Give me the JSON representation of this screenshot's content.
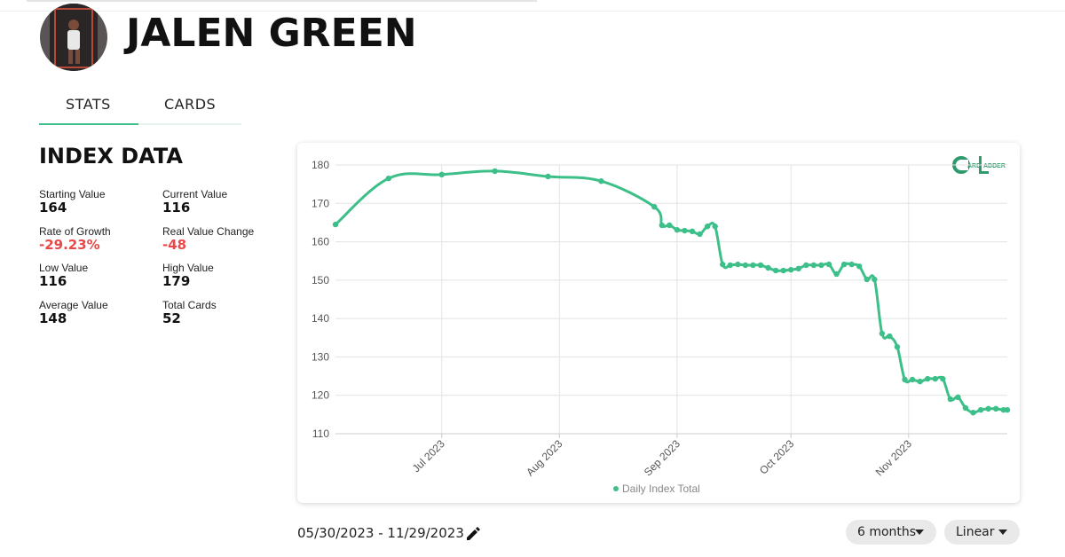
{
  "header": {
    "title": "JALEN GREEN"
  },
  "tabs": [
    "STATS",
    "CARDS"
  ],
  "index_data": {
    "title": "INDEX DATA",
    "stats": [
      {
        "label": "Starting Value",
        "value": "164"
      },
      {
        "label": "Current Value",
        "value": "116"
      },
      {
        "label": "Rate of Growth",
        "value": "-29.23%"
      },
      {
        "label": "Real Value Change",
        "value": "-48"
      },
      {
        "label": "Low Value",
        "value": "116"
      },
      {
        "label": "High Value",
        "value": "179"
      },
      {
        "label": "Average Value",
        "value": "148"
      },
      {
        "label": "Total Cards",
        "value": "52"
      }
    ]
  },
  "logo": {
    "left": "ARD",
    "right": "ADDER"
  },
  "chart_data": {
    "type": "line",
    "x": [
      "2023-06-03",
      "2023-06-17",
      "2023-07-01",
      "2023-07-15",
      "2023-07-29",
      "2023-08-12",
      "2023-08-26",
      "2023-08-28",
      "2023-08-30",
      "2023-09-01",
      "2023-09-03",
      "2023-09-05",
      "2023-09-07",
      "2023-09-09",
      "2023-09-11",
      "2023-09-13",
      "2023-09-15",
      "2023-09-17",
      "2023-09-19",
      "2023-09-21",
      "2023-09-23",
      "2023-09-25",
      "2023-09-27",
      "2023-09-29",
      "2023-10-01",
      "2023-10-03",
      "2023-10-05",
      "2023-10-07",
      "2023-10-09",
      "2023-10-11",
      "2023-10-13",
      "2023-10-15",
      "2023-10-17",
      "2023-10-19",
      "2023-10-21",
      "2023-10-23",
      "2023-10-25",
      "2023-10-27",
      "2023-10-29",
      "2023-10-31",
      "2023-11-02",
      "2023-11-04",
      "2023-11-06",
      "2023-11-08",
      "2023-11-10",
      "2023-11-12",
      "2023-11-14",
      "2023-11-16",
      "2023-11-18",
      "2023-11-20",
      "2023-11-22",
      "2023-11-24",
      "2023-11-26",
      "2023-11-27"
    ],
    "series": [
      {
        "name": "Daily Index Total",
        "color": "#3dbf8a",
        "values": [
          164.5,
          176.5,
          177.5,
          178.4,
          177,
          175.8,
          169.1,
          164.3,
          164.3,
          163.1,
          162.9,
          162.7,
          162,
          164,
          164,
          154.1,
          153.9,
          154.1,
          153.9,
          153.9,
          153.9,
          153.2,
          152.5,
          152.5,
          152.7,
          153,
          153.9,
          153.9,
          153.9,
          154.1,
          151.6,
          154.1,
          154.1,
          153.6,
          150.2,
          150.2,
          136.1,
          135.4,
          132.6,
          124.1,
          124.1,
          123.6,
          124.3,
          124.3,
          124.3,
          119,
          119.5,
          116.7,
          115.5,
          116.2,
          116.5,
          116.5,
          116.2,
          116.2
        ]
      }
    ],
    "xlim": [
      "2023-06-03",
      "2023-11-27"
    ],
    "xticks": [
      {
        "value": "2023-07-01",
        "label": "Jul 2023"
      },
      {
        "value": "2023-08-01",
        "label": "Aug 2023"
      },
      {
        "value": "2023-09-01",
        "label": "Sep 2023"
      },
      {
        "value": "2023-10-01",
        "label": "Oct 2023"
      },
      {
        "value": "2023-11-01",
        "label": "Nov 2023"
      }
    ],
    "ylim": [
      110,
      180
    ],
    "yticks": [
      110,
      120,
      130,
      140,
      150,
      160,
      170,
      180
    ],
    "grid": true
  },
  "controls": {
    "date_range": "05/30/2023 - 11/29/2023",
    "period": "6 months",
    "scale": "Linear"
  }
}
